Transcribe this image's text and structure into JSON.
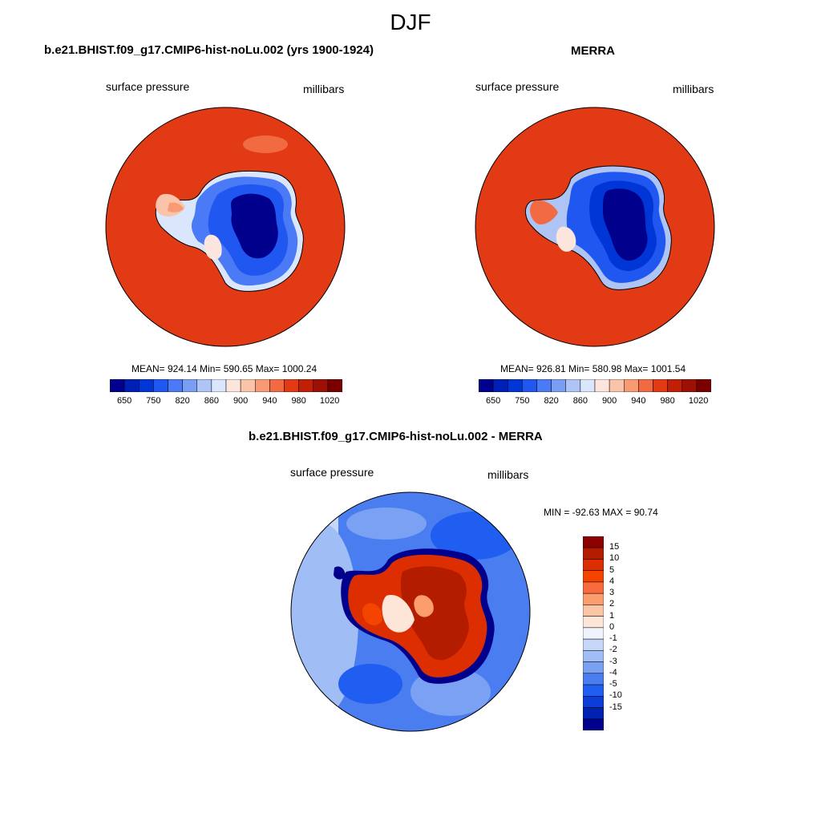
{
  "title": "DJF",
  "panels": [
    {
      "title": "b.e21.BHIST.f09_g17.CMIP6-hist-noLu.002 (yrs 1900-1924)",
      "left_label": "surface pressure",
      "right_label": "millibars",
      "stats": "MEAN= 924.14  Min= 590.65  Max= 1000.24"
    },
    {
      "title": "MERRA",
      "left_label": "surface pressure",
      "right_label": "millibars",
      "stats": "MEAN= 926.81  Min= 580.98  Max= 1001.54"
    }
  ],
  "colorbar": {
    "colors": [
      "#00008c",
      "#001fb5",
      "#0035d6",
      "#1f57f0",
      "#4a7af5",
      "#7b9ef5",
      "#aec4f5",
      "#d9e6fb",
      "#fbe5dc",
      "#f9c4a9",
      "#f89a74",
      "#f26a42",
      "#e23a15",
      "#c21f07",
      "#9c1006",
      "#7a0000"
    ],
    "labels": [
      "650",
      "750",
      "820",
      "860",
      "900",
      "940",
      "980",
      "1020"
    ]
  },
  "difference": {
    "title": "b.e21.BHIST.f09_g17.CMIP6-hist-noLu.002 - MERRA",
    "left_label": "surface pressure",
    "right_label": "millibars",
    "stats": "MIN = -92.63 MAX =  90.74",
    "colors": [
      "#8b0000",
      "#b41c00",
      "#dc2e00",
      "#f44400",
      "#f96b3c",
      "#fb9d6d",
      "#fcc5a6",
      "#fde6d8",
      "#eef3fd",
      "#c5d6f8",
      "#a0bdf5",
      "#7aa1f2",
      "#4a7ef0",
      "#1f5ef0",
      "#0b3ed8",
      "#0022b0",
      "#00008c"
    ],
    "labels": [
      "15",
      "10",
      "5",
      "4",
      "3",
      "2",
      "1",
      "0",
      "-1",
      "-2",
      "-3",
      "-4",
      "-5",
      "-10",
      "-15"
    ]
  }
}
